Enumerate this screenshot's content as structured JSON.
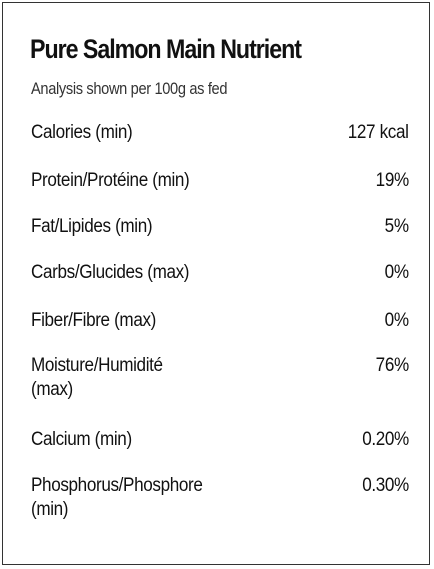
{
  "panel": {
    "title": "Pure Salmon Main Nutrient",
    "subtitle": "Analysis shown per 100g as fed"
  },
  "nutrients": [
    {
      "label": "Calories (min)",
      "value": "127 kcal"
    },
    {
      "label": "Protein/Protéine (min)",
      "value": "19%"
    },
    {
      "label": "Fat/Lipides (min)",
      "value": "5%"
    },
    {
      "label": "Carbs/Glucides (max)",
      "value": "0%"
    },
    {
      "label": "Fiber/Fibre (max)",
      "value": "0%"
    },
    {
      "label": "Moisture/Humidité (max)",
      "value": "76%"
    },
    {
      "label": "Calcium (min)",
      "value": "0.20%"
    },
    {
      "label": "Phosphorus/Phosphore (min)",
      "value": "0.30%"
    }
  ]
}
